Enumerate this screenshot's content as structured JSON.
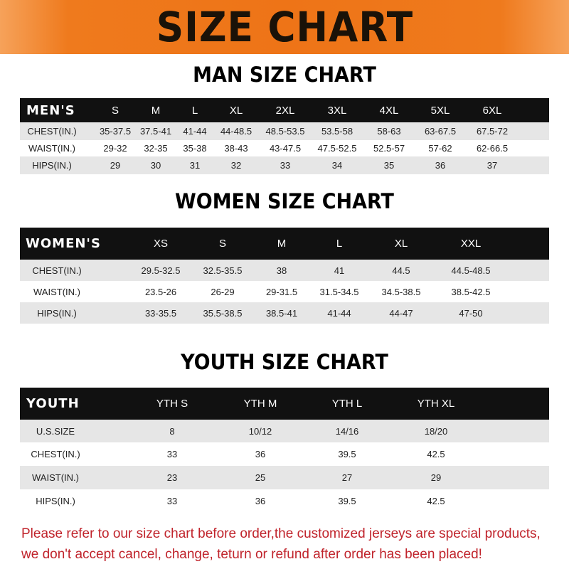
{
  "banner": "SIZE CHART",
  "tables": [
    {
      "title": "MAN SIZE CHART",
      "header_label": "MEN'S",
      "sizes": [
        "S",
        "M",
        "L",
        "XL",
        "2XL",
        "3XL",
        "4XL",
        "5XL",
        "6XL"
      ],
      "rows": [
        {
          "label": "CHEST(IN.)",
          "values": [
            "35-37.5",
            "37.5-41",
            "41-44",
            "44-48.5",
            "48.5-53.5",
            "53.5-58",
            "58-63",
            "63-67.5",
            "67.5-72"
          ]
        },
        {
          "label": "WAIST(IN.)",
          "values": [
            "29-32",
            "32-35",
            "35-38",
            "38-43",
            "43-47.5",
            "47.5-52.5",
            "52.5-57",
            "57-62",
            "62-66.5"
          ]
        },
        {
          "label": "HIPS(IN.)",
          "values": [
            "29",
            "30",
            "31",
            "32",
            "33",
            "34",
            "35",
            "36",
            "37"
          ]
        }
      ]
    },
    {
      "title": "WOMEN SIZE CHART",
      "header_label": "WOMEN'S",
      "sizes": [
        "XS",
        "S",
        "M",
        "L",
        "XL",
        "XXL"
      ],
      "rows": [
        {
          "label": "CHEST(IN.)",
          "values": [
            "29.5-32.5",
            "32.5-35.5",
            "38",
            "41",
            "44.5",
            "44.5-48.5"
          ]
        },
        {
          "label": "WAIST(IN.)",
          "values": [
            "23.5-26",
            "26-29",
            "29-31.5",
            "31.5-34.5",
            "34.5-38.5",
            "38.5-42.5"
          ]
        },
        {
          "label": "HIPS(IN.)",
          "values": [
            "33-35.5",
            "35.5-38.5",
            "38.5-41",
            "41-44",
            "44-47",
            "47-50"
          ]
        }
      ]
    },
    {
      "title": "YOUTH SIZE CHART",
      "header_label": "YOUTH",
      "sizes": [
        "YTH S",
        "YTH M",
        "YTH L",
        "YTH XL"
      ],
      "rows": [
        {
          "label": "U.S.SIZE",
          "values": [
            "8",
            "10/12",
            "14/16",
            "18/20"
          ]
        },
        {
          "label": "CHEST(IN.)",
          "values": [
            "33",
            "36",
            "39.5",
            "42.5"
          ]
        },
        {
          "label": "WAIST(IN.)",
          "values": [
            "23",
            "25",
            "27",
            "29"
          ]
        },
        {
          "label": "HIPS(IN.)",
          "values": [
            "33",
            "36",
            "39.5",
            "42.5"
          ]
        }
      ]
    }
  ],
  "footer": {
    "line1": "Please refer to our size chart before order,the customized jerseys are special products,",
    "line2": "we don't accept cancel, change, teturn or refund after order has been placed!"
  },
  "colors": {
    "banner": "#ee7417",
    "header_row": "#111111",
    "stripe": "#e6e6e6",
    "footer_text": "#c0232b"
  }
}
